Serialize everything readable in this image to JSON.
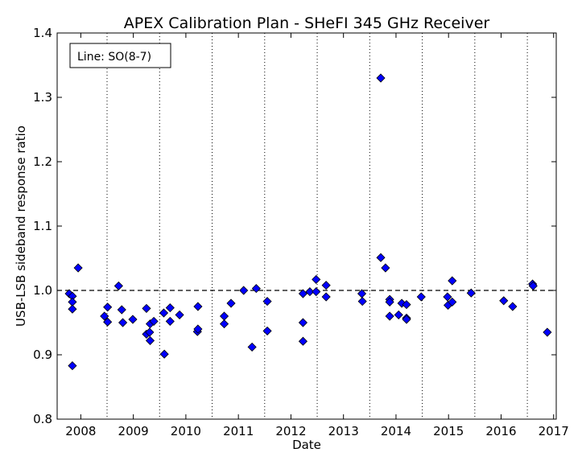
{
  "chart_data": {
    "type": "scatter",
    "title": "APEX Calibration Plan - SHeFI 345 GHz Receiver",
    "xlabel": "Date",
    "ylabel": "USB-LSB sideband response ratio",
    "xlim": [
      2007.55,
      2017.05
    ],
    "ylim": [
      0.8,
      1.4
    ],
    "x_ticks": [
      2008,
      2009,
      2010,
      2011,
      2012,
      2013,
      2014,
      2015,
      2016,
      2017
    ],
    "x_tick_labels": [
      "2008",
      "2009",
      "2010",
      "2011",
      "2012",
      "2013",
      "2014",
      "2015",
      "2016",
      "2017"
    ],
    "y_ticks": [
      0.8,
      0.9,
      1.0,
      1.1,
      1.2,
      1.3,
      1.4
    ],
    "y_tick_labels": [
      "0.8",
      "0.9",
      "1.0",
      "1.1",
      "1.2",
      "1.3",
      "1.4"
    ],
    "reference_line": 1.0,
    "vertical_dotted_lines": [
      2008.5,
      2009.5,
      2010.5,
      2011.5,
      2012.5,
      2013.5,
      2014.5,
      2015.5,
      2016.5
    ],
    "legend_text": "Line: SO(8-7)",
    "legend_location": "top-left",
    "marker_color": "#0000ff",
    "marker": "diamond",
    "points": [
      [
        2007.78,
        0.995
      ],
      [
        2007.84,
        0.991
      ],
      [
        2007.84,
        0.982
      ],
      [
        2007.84,
        0.971
      ],
      [
        2007.84,
        0.883
      ],
      [
        2007.95,
        1.035
      ],
      [
        2008.45,
        0.96
      ],
      [
        2008.51,
        0.974
      ],
      [
        2008.51,
        0.951
      ],
      [
        2008.72,
        1.007
      ],
      [
        2008.78,
        0.97
      ],
      [
        2008.8,
        0.95
      ],
      [
        2008.99,
        0.955
      ],
      [
        2009.25,
        0.972
      ],
      [
        2009.25,
        0.932
      ],
      [
        2009.31,
        0.935
      ],
      [
        2009.32,
        0.948
      ],
      [
        2009.32,
        0.922
      ],
      [
        2009.39,
        0.952
      ],
      [
        2009.58,
        0.965
      ],
      [
        2009.59,
        0.901
      ],
      [
        2009.7,
        0.973
      ],
      [
        2009.7,
        0.952
      ],
      [
        2009.88,
        0.962
      ],
      [
        2010.22,
        0.936
      ],
      [
        2010.23,
        0.975
      ],
      [
        2010.23,
        0.94
      ],
      [
        2010.73,
        0.96
      ],
      [
        2010.73,
        0.948
      ],
      [
        2010.86,
        0.98
      ],
      [
        2011.1,
        1.0
      ],
      [
        2011.26,
        0.912
      ],
      [
        2011.34,
        1.003
      ],
      [
        2011.55,
        0.983
      ],
      [
        2011.55,
        0.937
      ],
      [
        2012.23,
        0.995
      ],
      [
        2012.23,
        0.95
      ],
      [
        2012.23,
        0.921
      ],
      [
        2012.36,
        0.998
      ],
      [
        2012.48,
        1.017
      ],
      [
        2012.48,
        0.998
      ],
      [
        2012.67,
        1.008
      ],
      [
        2012.67,
        0.99
      ],
      [
        2013.35,
        0.995
      ],
      [
        2013.36,
        0.983
      ],
      [
        2013.71,
        1.33
      ],
      [
        2013.71,
        1.051
      ],
      [
        2013.8,
        1.035
      ],
      [
        2013.88,
        0.986
      ],
      [
        2013.88,
        0.982
      ],
      [
        2013.88,
        0.96
      ],
      [
        2014.05,
        0.962
      ],
      [
        2014.11,
        0.98
      ],
      [
        2014.2,
        0.978
      ],
      [
        2014.2,
        0.957
      ],
      [
        2014.2,
        0.955
      ],
      [
        2014.48,
        0.99
      ],
      [
        2014.98,
        0.99
      ],
      [
        2014.99,
        0.977
      ],
      [
        2015.07,
        1.015
      ],
      [
        2015.07,
        0.982
      ],
      [
        2015.43,
        0.996
      ],
      [
        2016.05,
        0.984
      ],
      [
        2016.22,
        0.975
      ],
      [
        2016.6,
        1.01
      ],
      [
        2016.61,
        1.007
      ],
      [
        2016.88,
        0.935
      ]
    ]
  }
}
